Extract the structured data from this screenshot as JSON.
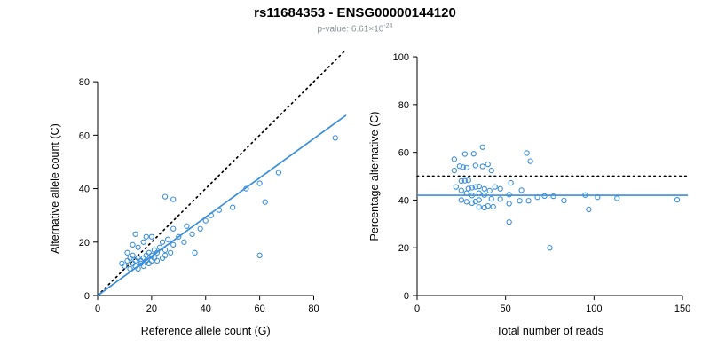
{
  "header": {
    "title": "rs11684353 - ENSG00000144120",
    "subtitle_base": "p-value: 6.61×10",
    "subtitle_exponent": "-24"
  },
  "colors": {
    "accent_blue": "#3a8edb",
    "line_black": "#000000",
    "subtitle_gray": "#8a8f98"
  },
  "chart_data": [
    {
      "type": "scatter",
      "name": "allele-counts",
      "xlabel": "Reference allele count (G)",
      "ylabel": "Alternative allele count (C)",
      "xlim": [
        0,
        92
      ],
      "ylim": [
        0,
        92
      ],
      "xticks": [
        0,
        20,
        40,
        60,
        80
      ],
      "yticks": [
        0,
        20,
        40,
        60,
        80
      ],
      "point_color": "#3a8edb",
      "x": [
        9,
        10,
        11,
        11,
        12,
        12,
        13,
        13,
        13,
        14,
        14,
        14,
        15,
        15,
        15,
        16,
        16,
        17,
        17,
        17,
        18,
        18,
        18,
        19,
        19,
        20,
        20,
        20,
        21,
        21,
        22,
        22,
        23,
        24,
        24,
        25,
        25,
        25,
        26,
        27,
        28,
        28,
        28,
        30,
        32,
        33,
        35,
        36,
        38,
        40,
        42,
        45,
        50,
        55,
        60,
        60,
        62,
        67,
        88
      ],
      "y": [
        12,
        11,
        13,
        16,
        10,
        14,
        12,
        15,
        19,
        11,
        13,
        23,
        10,
        14,
        18,
        12,
        13,
        11,
        14,
        20,
        13,
        15,
        22,
        12,
        16,
        13,
        15,
        22,
        14,
        17,
        13,
        16,
        18,
        14,
        20,
        15,
        17,
        37,
        21,
        16,
        19,
        25,
        36,
        22,
        20,
        26,
        23,
        16,
        25,
        28,
        30,
        32,
        33,
        40,
        15,
        42,
        35,
        46,
        59
      ],
      "lines": [
        {
          "x1": 0,
          "y1": 0,
          "x2": 92,
          "y2": 92,
          "style": "dotted",
          "color": "#000000"
        },
        {
          "x1": 0,
          "y1": 0,
          "x2": 92,
          "y2": 67.5,
          "style": "solid",
          "color": "#3a8edb"
        }
      ]
    },
    {
      "type": "scatter",
      "name": "percentage-vs-total-reads",
      "xlabel": "Total number of reads",
      "ylabel": "Percentage alternative (C)",
      "xlim": [
        0,
        153
      ],
      "ylim": [
        0,
        103
      ],
      "xticks": [
        0,
        50,
        100,
        150
      ],
      "yticks": [
        0,
        20,
        40,
        60,
        80,
        100
      ],
      "point_color": "#3a8edb",
      "x": [
        21,
        21,
        24,
        27,
        22,
        26,
        25,
        28,
        32,
        25,
        27,
        37,
        25,
        29,
        33,
        28,
        29,
        28,
        31,
        37,
        31,
        33,
        40,
        31,
        35,
        33,
        35,
        42,
        35,
        38,
        35,
        38,
        41,
        38,
        44,
        40,
        42,
        62,
        47,
        43,
        47,
        53,
        64,
        52,
        52,
        59,
        58,
        52,
        63,
        68,
        72,
        77,
        83,
        95,
        75,
        102,
        97,
        113,
        147
      ],
      "y": [
        57.1,
        52.4,
        54.2,
        59.3,
        45.5,
        53.8,
        48,
        53.6,
        59.4,
        44,
        48.1,
        62.2,
        40,
        48.3,
        54.5,
        42.9,
        44.8,
        39.3,
        45.2,
        54.1,
        41.9,
        45.5,
        55,
        38.7,
        45.7,
        39.4,
        42.9,
        52.4,
        40,
        44.7,
        37.1,
        42.1,
        43.9,
        36.8,
        45.5,
        37.5,
        40.5,
        59.7,
        44.7,
        37.2,
        40.4,
        47.2,
        56.3,
        42.3,
        38.5,
        44.1,
        39.7,
        30.8,
        39.7,
        41.2,
        41.7,
        41.6,
        39.8,
        42.1,
        20,
        41.2,
        36.1,
        40.7,
        40.1
      ],
      "lines": [
        {
          "x1": 0,
          "y1": 50,
          "x2": 153,
          "y2": 50,
          "style": "dotted",
          "color": "#000000"
        },
        {
          "x1": 0,
          "y1": 42,
          "x2": 153,
          "y2": 42,
          "style": "solid",
          "color": "#3a8edb"
        }
      ]
    }
  ]
}
